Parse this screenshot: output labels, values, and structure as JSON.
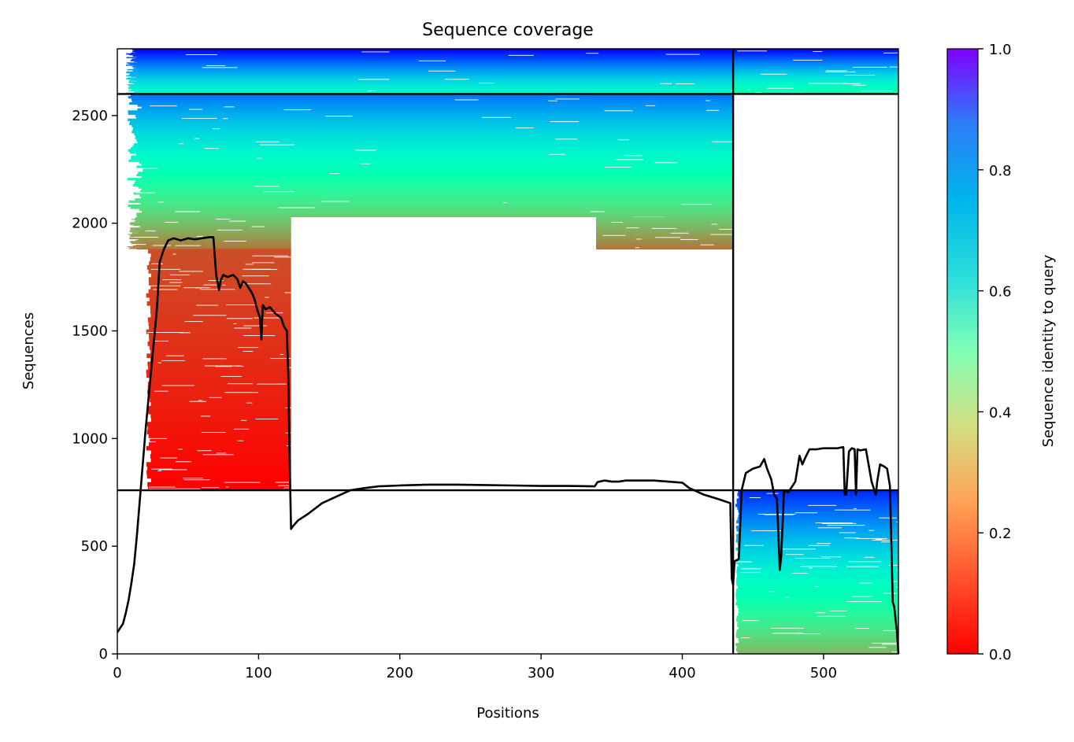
{
  "chart_data": {
    "type": "heatmap",
    "title": "Sequence coverage",
    "xlabel": "Positions",
    "ylabel": "Sequences",
    "xlim": [
      0,
      553
    ],
    "ylim": [
      0,
      2810
    ],
    "xticks": [
      0,
      100,
      200,
      300,
      400,
      500
    ],
    "yticks": [
      0,
      500,
      1000,
      1500,
      2000,
      2500
    ],
    "colorbar": {
      "label": "Sequence identity to query",
      "range": [
        0,
        1
      ],
      "ticks": [
        "0.0",
        "0.2",
        "0.4",
        "0.6",
        "0.8",
        "1.0"
      ],
      "colormap": "rainbow_r"
    },
    "domain_boundaries_x": [
      436
    ],
    "group_boundaries_y": [
      760,
      2600
    ],
    "blocks": [
      {
        "x": [
          0,
          436
        ],
        "y": [
          2600,
          2810
        ],
        "identity": [
          0.55,
          1.0
        ],
        "start_offset": 14
      },
      {
        "x": [
          436,
          553
        ],
        "y": [
          2600,
          2810
        ],
        "identity": [
          0.45,
          1.0
        ],
        "start_offset": 0
      },
      {
        "x": [
          0,
          436
        ],
        "y": [
          2030,
          2600
        ],
        "identity": [
          0.3,
          0.85
        ],
        "start_offset": 18
      },
      {
        "x": [
          0,
          123
        ],
        "y": [
          1880,
          2030
        ],
        "identity": [
          0.15,
          0.3
        ],
        "start_offset": 18
      },
      {
        "x": [
          339,
          436
        ],
        "y": [
          1880,
          2030
        ],
        "identity": [
          0.15,
          0.3
        ],
        "start_offset": 339
      },
      {
        "x": [
          18,
          123
        ],
        "y": [
          760,
          1880
        ],
        "identity": [
          0.0,
          0.1
        ],
        "start_offset": 24
      },
      {
        "x": [
          436,
          553
        ],
        "y": [
          0,
          760
        ],
        "identity": [
          0.25,
          0.95
        ],
        "start_offset": 440
      }
    ],
    "coverage_line": {
      "name": "",
      "x": [
        0,
        4,
        6,
        8,
        10,
        12,
        14,
        16,
        18,
        20,
        22,
        24,
        26,
        28,
        30,
        33,
        36,
        40,
        45,
        50,
        55,
        60,
        65,
        68,
        70,
        72,
        73,
        75,
        78,
        82,
        85,
        87,
        89,
        91,
        93,
        95,
        97,
        99,
        101,
        102,
        103,
        105,
        108,
        112,
        116,
        118,
        120,
        121,
        122,
        123,
        124,
        128,
        135,
        145,
        155,
        165,
        175,
        185,
        200,
        220,
        240,
        260,
        280,
        300,
        320,
        338,
        340,
        345,
        350,
        355,
        360,
        380,
        400,
        405,
        415,
        425,
        434,
        435,
        436,
        437,
        440,
        442,
        445,
        450,
        455,
        458,
        460,
        463,
        465,
        467,
        468,
        469,
        470,
        472,
        475,
        478,
        480,
        483,
        485,
        487,
        490,
        495,
        500,
        505,
        510,
        512,
        514,
        515,
        516,
        518,
        520,
        522,
        523,
        524,
        526,
        530,
        534,
        536,
        537,
        538,
        540,
        543,
        545,
        547,
        549,
        550,
        551,
        552,
        553
      ],
      "y": [
        100,
        140,
        190,
        250,
        330,
        420,
        560,
        720,
        880,
        1040,
        1180,
        1320,
        1460,
        1600,
        1820,
        1880,
        1920,
        1930,
        1920,
        1930,
        1925,
        1930,
        1935,
        1935,
        1760,
        1690,
        1730,
        1760,
        1750,
        1760,
        1740,
        1700,
        1730,
        1720,
        1700,
        1680,
        1650,
        1600,
        1560,
        1460,
        1620,
        1600,
        1610,
        1580,
        1560,
        1520,
        1500,
        1300,
        900,
        580,
        590,
        620,
        650,
        700,
        730,
        760,
        770,
        778,
        782,
        786,
        786,
        784,
        782,
        780,
        780,
        778,
        798,
        805,
        800,
        800,
        805,
        805,
        795,
        770,
        740,
        720,
        700,
        350,
        320,
        430,
        440,
        760,
        840,
        860,
        870,
        905,
        860,
        810,
        740,
        720,
        560,
        390,
        450,
        760,
        750,
        780,
        800,
        920,
        880,
        910,
        950,
        950,
        955,
        955,
        955,
        958,
        960,
        740,
        740,
        940,
        955,
        950,
        740,
        950,
        945,
        950,
        800,
        760,
        740,
        800,
        880,
        870,
        860,
        780,
        240,
        220,
        160,
        100,
        0
      ]
    }
  }
}
